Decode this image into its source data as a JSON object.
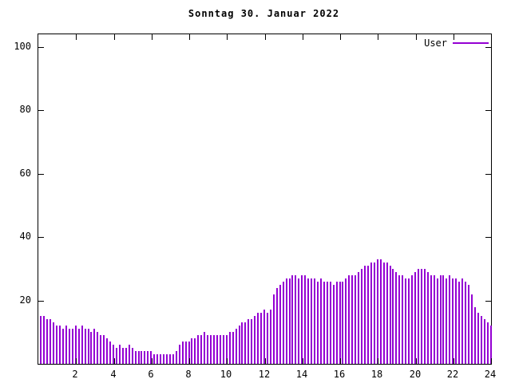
{
  "chart_data": {
    "type": "bar",
    "title": "Sonntag 30. Januar 2022",
    "legend": "User",
    "xlabel": "",
    "ylabel": "",
    "color": "#9400d3",
    "axis_color": "#000000",
    "xlim": [
      0,
      24
    ],
    "ylim": [
      0,
      104
    ],
    "xticks": [
      2,
      4,
      6,
      8,
      10,
      12,
      14,
      16,
      18,
      20,
      22,
      24
    ],
    "yticks": [
      20,
      40,
      60,
      80,
      100
    ],
    "interval_minutes": 10,
    "values": [
      15,
      15,
      14,
      14,
      13,
      12,
      12,
      11,
      12,
      11,
      11,
      12,
      11,
      12,
      11,
      11,
      10,
      11,
      10,
      9,
      9,
      8,
      7,
      6,
      5,
      6,
      5,
      5,
      6,
      5,
      4,
      4,
      4,
      4,
      4,
      4,
      3,
      3,
      3,
      3,
      3,
      3,
      3,
      4,
      6,
      7,
      7,
      7,
      8,
      8,
      9,
      9,
      10,
      9,
      9,
      9,
      9,
      9,
      9,
      9,
      10,
      10,
      11,
      12,
      13,
      13,
      14,
      14,
      15,
      16,
      16,
      17,
      16,
      17,
      22,
      24,
      25,
      26,
      27,
      27,
      28,
      28,
      27,
      28,
      28,
      27,
      27,
      27,
      26,
      27,
      26,
      26,
      26,
      25,
      26,
      26,
      26,
      27,
      28,
      28,
      28,
      29,
      30,
      31,
      31,
      32,
      32,
      33,
      33,
      32,
      32,
      31,
      30,
      29,
      28,
      28,
      27,
      27,
      28,
      29,
      30,
      30,
      30,
      29,
      28,
      28,
      27,
      28,
      28,
      27,
      28,
      27,
      27,
      26,
      27,
      26,
      25,
      22,
      18,
      16,
      15,
      14,
      13,
      12
    ]
  }
}
